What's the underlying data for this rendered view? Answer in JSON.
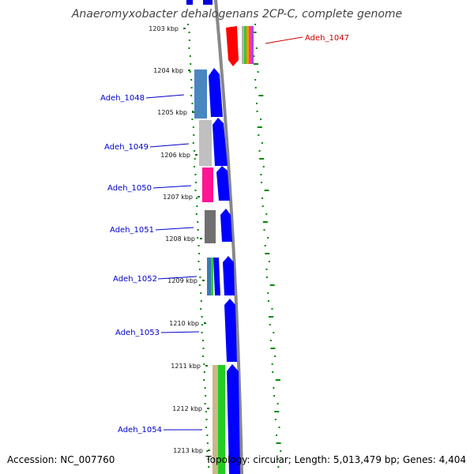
{
  "title": "Anaeromyxobacter dehalogenans 2CP-C, complete genome",
  "footer": {
    "accession": "Accession: NC_007760",
    "summary": "Topology: circular; Length: 5,013,479 bp; Genes: 4,404"
  },
  "colors": {
    "forward_gene": "#0000ff",
    "highlight_gene": "#ff0000",
    "backbone": "#888888",
    "gc_ticks": "#007700",
    "label_normal": "#0000cc",
    "label_highlight": "#cc0000"
  },
  "ruler": [
    {
      "label": "1203 kbp"
    },
    {
      "label": "1204 kbp"
    },
    {
      "label": "1205 kbp"
    },
    {
      "label": "1206 kbp"
    },
    {
      "label": "1207 kbp"
    },
    {
      "label": "1208 kbp"
    },
    {
      "label": "1209 kbp"
    },
    {
      "label": "1210 kbp"
    },
    {
      "label": "1211 kbp"
    },
    {
      "label": "1212 kbp"
    },
    {
      "label": "1213 kbp"
    }
  ],
  "genes": [
    {
      "name": "Adeh_1047",
      "highlighted": true
    },
    {
      "name": "Adeh_1048",
      "highlighted": false
    },
    {
      "name": "Adeh_1049",
      "highlighted": false
    },
    {
      "name": "Adeh_1050",
      "highlighted": false
    },
    {
      "name": "Adeh_1051",
      "highlighted": false
    },
    {
      "name": "Adeh_1052",
      "highlighted": false
    },
    {
      "name": "Adeh_1053",
      "highlighted": false
    },
    {
      "name": "Adeh_1054",
      "highlighted": false
    }
  ]
}
